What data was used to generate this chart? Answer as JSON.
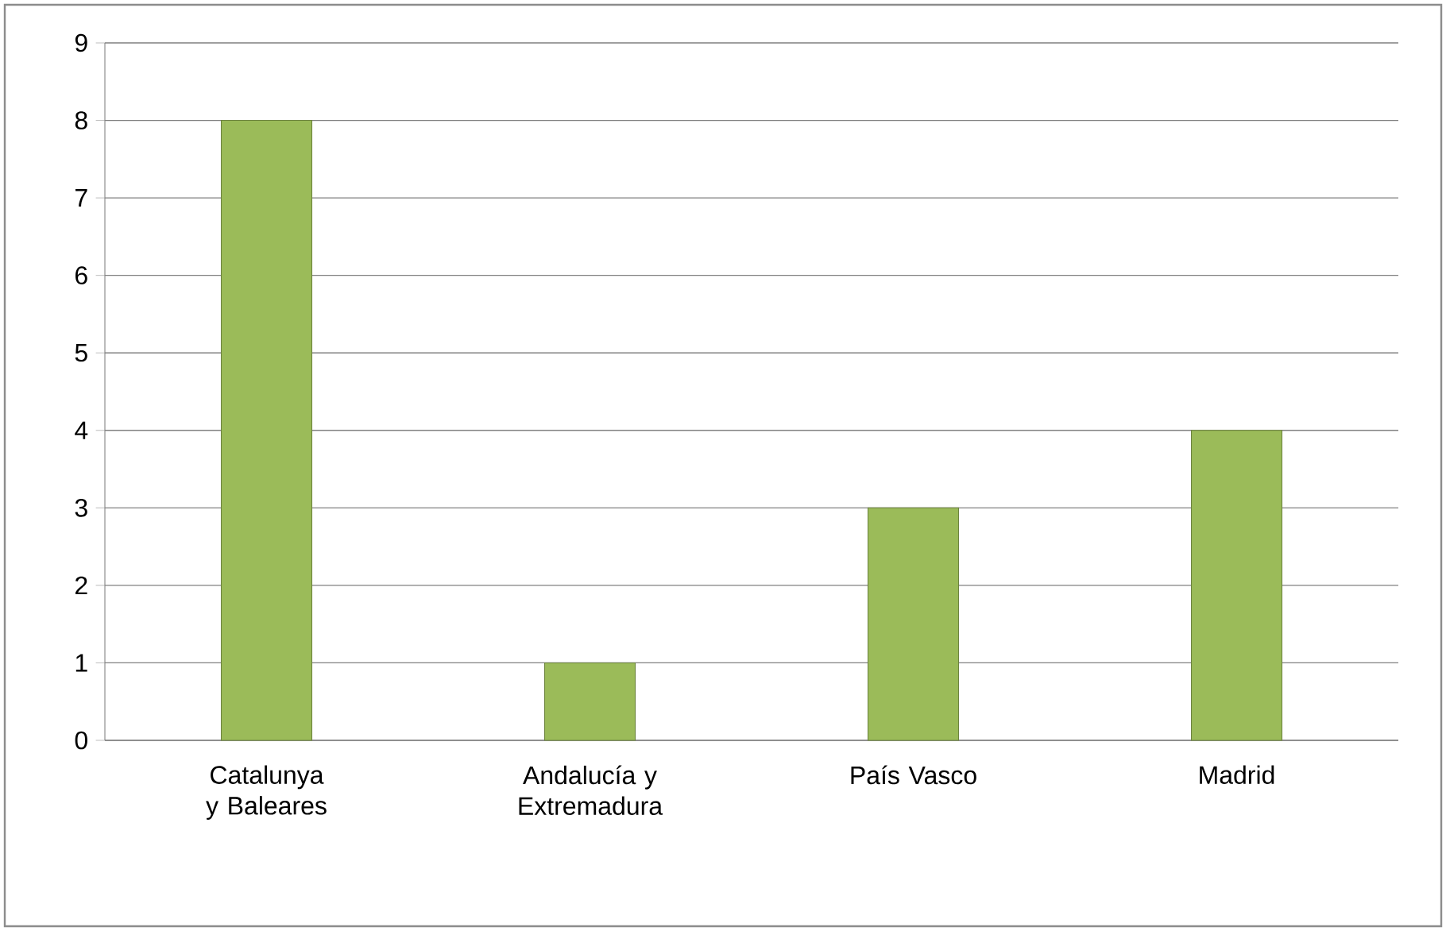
{
  "chart_data": {
    "type": "bar",
    "categories": [
      "Catalunya y Baleares",
      "Andalucía y Extremadura",
      "País Vasco",
      "Madrid"
    ],
    "values": [
      8,
      1,
      3,
      4
    ],
    "color": "#9bbb59",
    "ylim": [
      0,
      9
    ],
    "yticks": [
      0,
      1,
      2,
      3,
      4,
      5,
      6,
      7,
      8,
      9
    ],
    "grid": "y"
  }
}
